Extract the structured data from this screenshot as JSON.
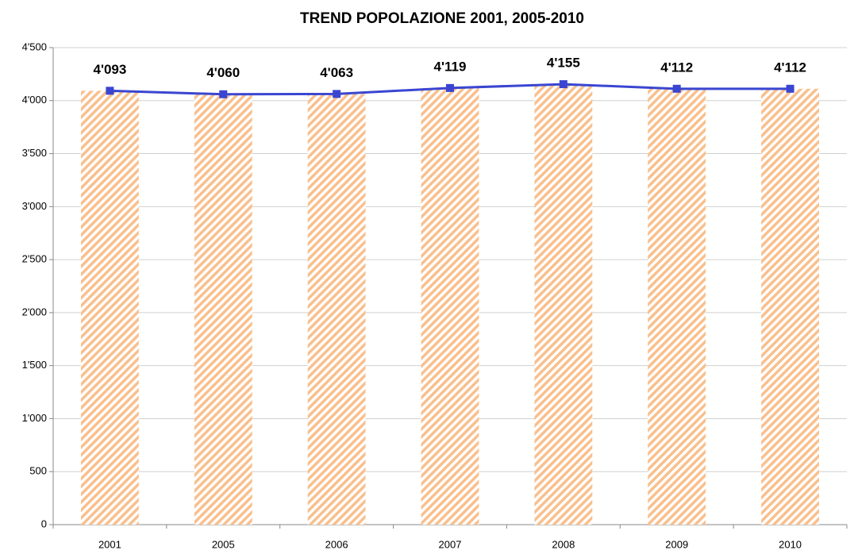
{
  "chart_data": {
    "type": "combo",
    "title": "TREND POPOLAZIONE 2001, 2005-2010",
    "categories": [
      "2001",
      "2005",
      "2006",
      "2007",
      "2008",
      "2009",
      "2010"
    ],
    "series": [
      {
        "type": "bar",
        "color": "#f9bf8c",
        "values": [
          4093,
          4060,
          4063,
          4119,
          4155,
          4112,
          4112
        ]
      },
      {
        "type": "line",
        "color": "#3a46d1",
        "values": [
          4093,
          4060,
          4063,
          4119,
          4155,
          4112,
          4112
        ],
        "value_labels": [
          "4'093",
          "4'060",
          "4'063",
          "4'119",
          "4'155",
          "4'112",
          "4'112"
        ]
      }
    ],
    "ylim": [
      0,
      4500
    ],
    "yticks": [
      0,
      500,
      {
        "value": 1000,
        "label": "1'000"
      },
      {
        "value": 1500,
        "label": "1'500"
      },
      {
        "value": 2000,
        "label": "2'000"
      },
      {
        "value": 2500,
        "label": "2'500"
      },
      {
        "value": 3000,
        "label": "3'000"
      },
      {
        "value": 3500,
        "label": "3'500"
      },
      {
        "value": 4000,
        "label": "4'000"
      },
      {
        "value": 4500,
        "label": "4'500"
      }
    ],
    "grid": true
  }
}
